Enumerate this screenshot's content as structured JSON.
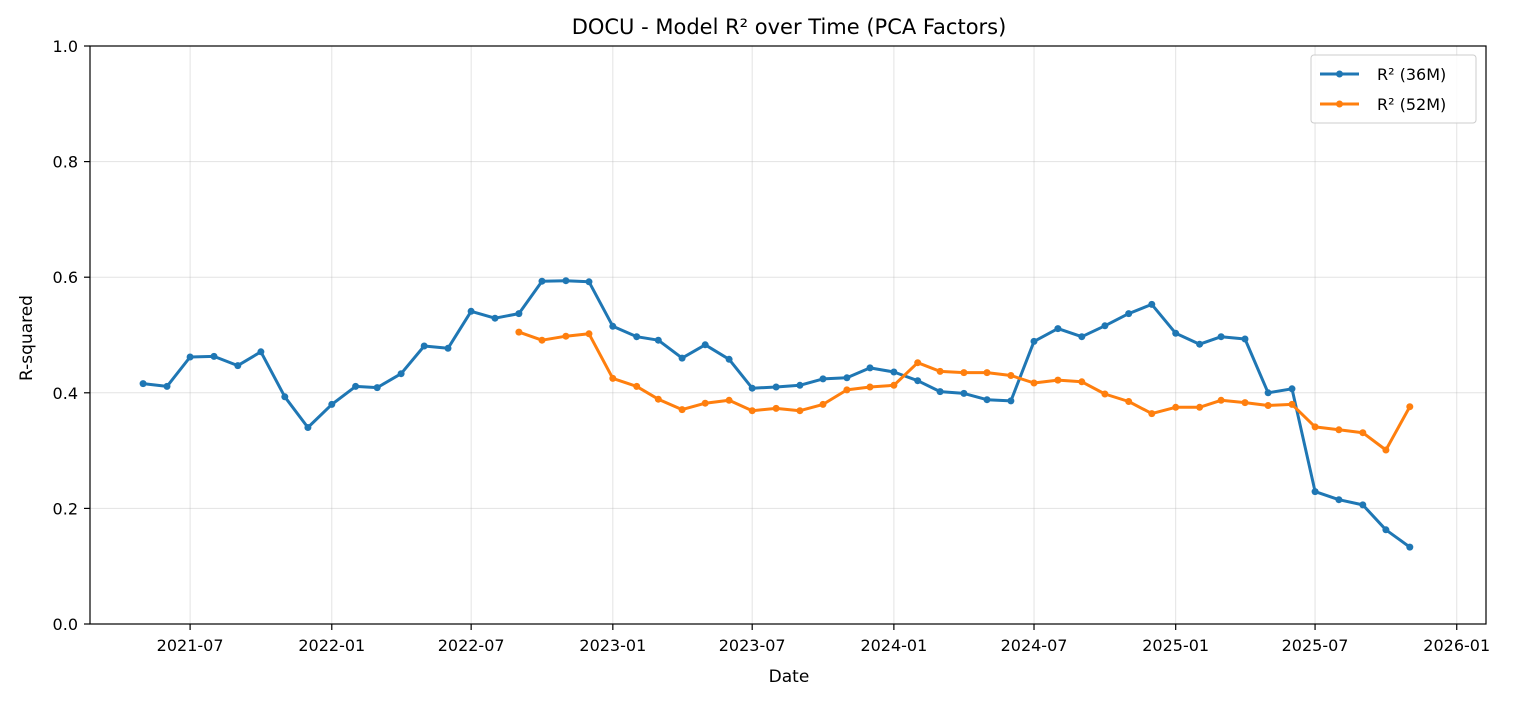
{
  "chart_data": {
    "type": "line",
    "title": "DOCU - Model R² over Time (PCA Factors)",
    "xlabel": "Date",
    "ylabel": "R-squared",
    "ylim": [
      0.0,
      1.0
    ],
    "xlim": [
      "2021-02-21",
      "2026-02-08"
    ],
    "grid": true,
    "legend_position": "top-right",
    "x_ticks": [
      "2021-07",
      "2022-01",
      "2022-07",
      "2023-01",
      "2023-07",
      "2024-01",
      "2024-07",
      "2025-01",
      "2025-07",
      "2026-01"
    ],
    "y_ticks": [
      "0.0",
      "0.2",
      "0.4",
      "0.6",
      "0.8",
      "1.0"
    ],
    "series": [
      {
        "name": "R² (36M)",
        "color": "#1f77b4",
        "x": [
          "2021-05-01",
          "2021-06-01",
          "2021-07-01",
          "2021-08-01",
          "2021-09-01",
          "2021-10-01",
          "2021-11-01",
          "2021-12-01",
          "2022-01-01",
          "2022-02-01",
          "2022-03-01",
          "2022-04-01",
          "2022-05-01",
          "2022-06-01",
          "2022-07-01",
          "2022-08-01",
          "2022-09-01",
          "2022-10-01",
          "2022-11-01",
          "2022-12-01",
          "2023-01-01",
          "2023-02-01",
          "2023-03-01",
          "2023-04-01",
          "2023-05-01",
          "2023-06-01",
          "2023-07-01",
          "2023-08-01",
          "2023-09-01",
          "2023-10-01",
          "2023-11-01",
          "2023-12-01",
          "2024-01-01",
          "2024-02-01",
          "2024-03-01",
          "2024-04-01",
          "2024-05-01",
          "2024-06-01",
          "2024-07-01",
          "2024-08-01",
          "2024-09-01",
          "2024-10-01",
          "2024-11-01",
          "2024-12-01",
          "2025-01-01",
          "2025-02-01",
          "2025-03-01",
          "2025-04-01",
          "2025-05-01",
          "2025-06-01",
          "2025-07-01",
          "2025-08-01",
          "2025-09-01",
          "2025-10-01",
          "2025-11-01"
        ],
        "values": [
          0.416,
          0.411,
          0.462,
          0.463,
          0.447,
          0.471,
          0.393,
          0.34,
          0.38,
          0.411,
          0.409,
          0.433,
          0.481,
          0.477,
          0.541,
          0.529,
          0.537,
          0.593,
          0.594,
          0.592,
          0.515,
          0.497,
          0.491,
          0.46,
          0.483,
          0.458,
          0.408,
          0.41,
          0.413,
          0.424,
          0.426,
          0.443,
          0.436,
          0.421,
          0.402,
          0.399,
          0.388,
          0.386,
          0.489,
          0.511,
          0.497,
          0.516,
          0.537,
          0.553,
          0.503,
          0.484,
          0.497,
          0.493,
          0.4,
          0.407,
          0.229,
          0.215,
          0.206,
          0.163,
          0.133
        ]
      },
      {
        "name": "R² (52M)",
        "color": "#ff7f0e",
        "x": [
          "2022-09-01",
          "2022-10-01",
          "2022-11-01",
          "2022-12-01",
          "2023-01-01",
          "2023-02-01",
          "2023-03-01",
          "2023-04-01",
          "2023-05-01",
          "2023-06-01",
          "2023-07-01",
          "2023-08-01",
          "2023-09-01",
          "2023-10-01",
          "2023-11-01",
          "2023-12-01",
          "2024-01-01",
          "2024-02-01",
          "2024-03-01",
          "2024-04-01",
          "2024-05-01",
          "2024-06-01",
          "2024-07-01",
          "2024-08-01",
          "2024-09-01",
          "2024-10-01",
          "2024-11-01",
          "2024-12-01",
          "2025-01-01",
          "2025-02-01",
          "2025-03-01",
          "2025-04-01",
          "2025-05-01",
          "2025-06-01",
          "2025-07-01",
          "2025-08-01",
          "2025-09-01",
          "2025-10-01",
          "2025-11-01"
        ],
        "values": [
          0.505,
          0.491,
          0.498,
          0.502,
          0.425,
          0.411,
          0.389,
          0.371,
          0.382,
          0.387,
          0.369,
          0.373,
          0.369,
          0.38,
          0.405,
          0.41,
          0.413,
          0.452,
          0.437,
          0.435,
          0.435,
          0.43,
          0.417,
          0.422,
          0.419,
          0.398,
          0.385,
          0.364,
          0.375,
          0.375,
          0.387,
          0.383,
          0.378,
          0.38,
          0.341,
          0.336,
          0.331,
          0.301,
          0.376
        ]
      }
    ]
  }
}
